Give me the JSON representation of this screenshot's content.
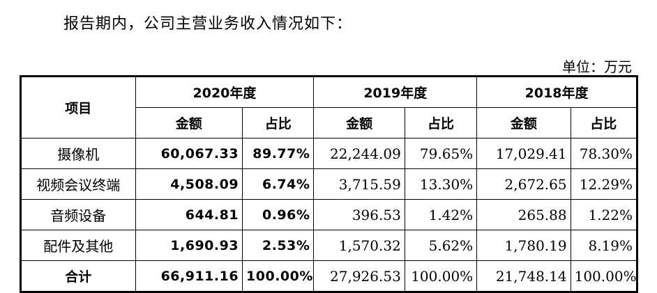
{
  "intro_text": "报告期内，公司主营业务收入情况如下：",
  "unit_label": "单位：万元",
  "table": {
    "item_header": "项目",
    "periods": [
      "2020年度",
      "2019年度",
      "2018年度"
    ],
    "sub_headers": {
      "amount": "金额",
      "ratio": "占比"
    },
    "rows": [
      {
        "label": "摄像机",
        "cells": [
          "60,067.33",
          "89.77%",
          "22,244.09",
          "79.65%",
          "17,029.41",
          "78.30%"
        ]
      },
      {
        "label": "视频会议终端",
        "cells": [
          "4,508.09",
          "6.74%",
          "3,715.59",
          "13.30%",
          "2,672.65",
          "12.29%"
        ]
      },
      {
        "label": "音频设备",
        "cells": [
          "644.81",
          "0.96%",
          "396.53",
          "1.42%",
          "265.88",
          "1.22%"
        ]
      },
      {
        "label": "配件及其他",
        "cells": [
          "1,690.93",
          "2.53%",
          "1,570.32",
          "5.62%",
          "1,780.19",
          "8.19%"
        ]
      },
      {
        "label": "合计",
        "cells": [
          "66,911.16",
          "100.00%",
          "27,926.53",
          "100.00%",
          "21,748.14",
          "100.00%"
        ]
      }
    ]
  }
}
